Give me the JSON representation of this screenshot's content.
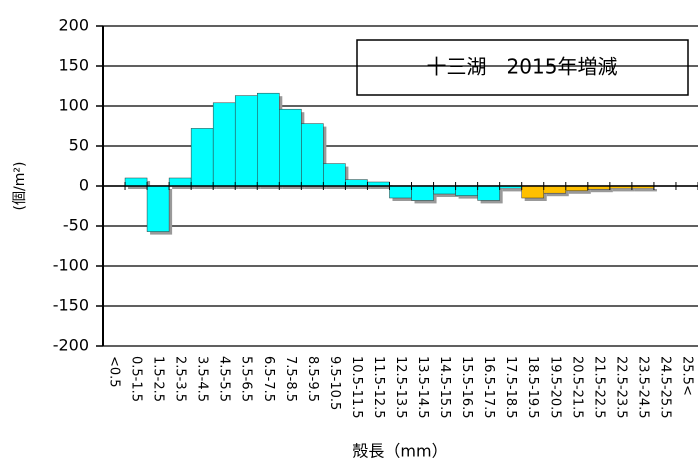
{
  "chart_data": {
    "type": "bar",
    "title": "十三湖　2015年増減",
    "y_label": "(個/m²)",
    "x_label": "殻長（mm）",
    "categories": [
      "<0.5",
      "0.5-1.5",
      "1.5-2.5",
      "2.5-3.5",
      "3.5-4.5",
      "4.5-5.5",
      "5.5-6.5",
      "6.5-7.5",
      "7.5-8.5",
      "8.5-9.5",
      "9.5-10.5",
      "10.5-11.5",
      "11.5-12.5",
      "12.5-13.5",
      "13.5-14.5",
      "14.5-15.5",
      "15.5-16.5",
      "16.5-17.5",
      "17.5-18.5",
      "18.5-19.5",
      "19.5-20.5",
      "20.5-21.5",
      "21.5-22.5",
      "22.5-23.5",
      "23.5-24.5",
      "24.5-25.5",
      "25.5<"
    ],
    "values": [
      0,
      10,
      -57,
      10,
      72,
      104,
      113,
      116,
      96,
      78,
      28,
      8,
      5,
      -15,
      -18,
      -10,
      -12,
      -18,
      -3,
      -15,
      -9,
      -6,
      -4,
      -3,
      -3,
      0,
      0
    ],
    "colors": [
      "#00ffff",
      "#00ffff",
      "#00ffff",
      "#00ffff",
      "#00ffff",
      "#00ffff",
      "#00ffff",
      "#00ffff",
      "#00ffff",
      "#00ffff",
      "#00ffff",
      "#00ffff",
      "#00ffff",
      "#00ffff",
      "#00ffff",
      "#00ffff",
      "#00ffff",
      "#00ffff",
      "#00ffff",
      "#ffc000",
      "#ffc000",
      "#ffc000",
      "#ffc000",
      "#ffc000",
      "#ffc000",
      "#ffc000",
      "#ffc000"
    ],
    "ylim": [
      -200,
      200
    ],
    "yticks": [
      -200,
      -150,
      -100,
      -50,
      0,
      50,
      100,
      150,
      200
    ],
    "grid": true
  }
}
